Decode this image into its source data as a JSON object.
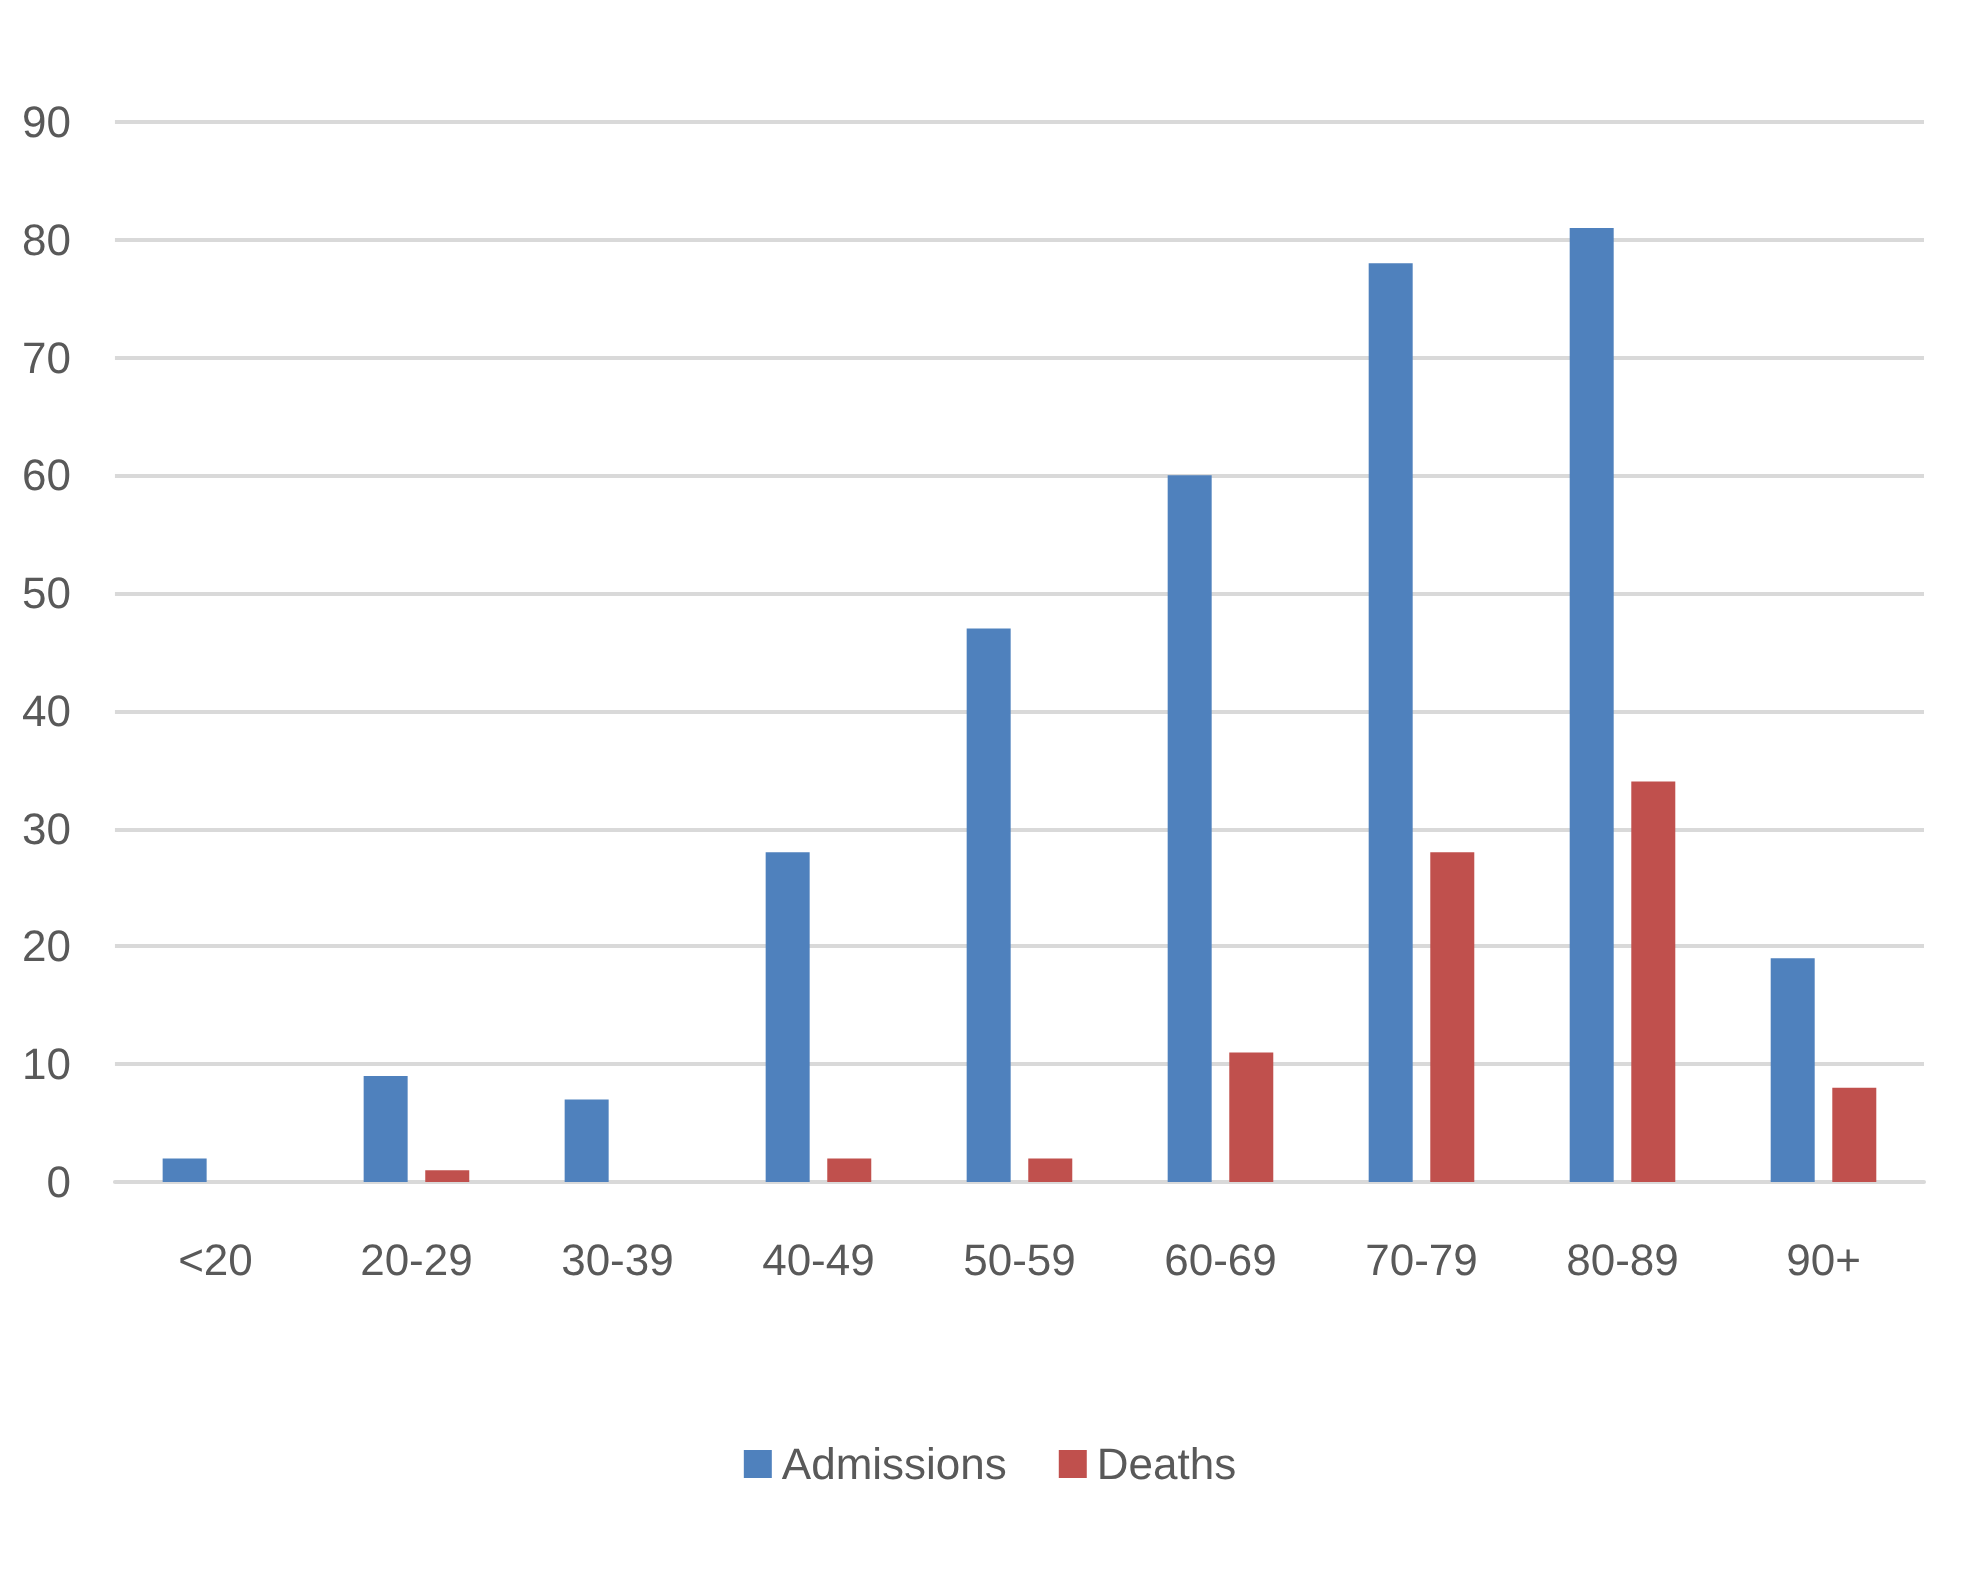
{
  "chart_data": {
    "type": "bar",
    "categories": [
      "<20",
      "20-29",
      "30-39",
      "40-49",
      "50-59",
      "60-69",
      "70-79",
      "80-89",
      "90+"
    ],
    "series": [
      {
        "name": "Admissions",
        "color": "#4f81bd",
        "values": [
          2,
          9,
          7,
          28,
          47,
          60,
          78,
          81,
          19
        ]
      },
      {
        "name": "Deaths",
        "color": "#c0504d",
        "values": [
          0,
          1,
          0,
          2,
          2,
          11,
          28,
          34,
          8
        ]
      }
    ],
    "ylim": [
      0,
      90
    ],
    "yticks": [
      0,
      10,
      20,
      30,
      40,
      50,
      60,
      70,
      80,
      90
    ],
    "grid": "y",
    "legend": "bottom"
  }
}
